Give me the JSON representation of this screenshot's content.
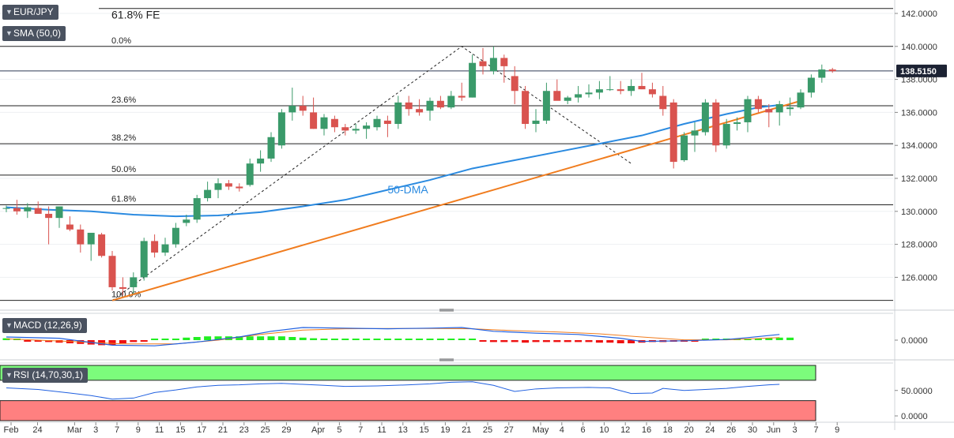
{
  "instrument": "EUR/JPY",
  "indicator_labels": {
    "sma": "SMA (50,0)",
    "macd": "MACD (12,26,9)",
    "rsi": "RSI (14,70,30,1)"
  },
  "colors": {
    "up_candle": "#3a9a6a",
    "down_candle": "#d9534f",
    "sma_line": "#2a8ae0",
    "trend_line": "#f07c1e",
    "macd_line": "#2060e0",
    "signal_line": "#f07c1e",
    "hist_up": "#22ee22",
    "hist_down": "#ee1111",
    "rsi_overbought": "#7cfc7c",
    "rsi_oversold": "#ff8080"
  },
  "chart_data": {
    "type": "candlestick",
    "price_axis": {
      "ticks": [
        {
          "v": 142,
          "label": "142.0000"
        },
        {
          "v": 140,
          "label": "140.0000"
        },
        {
          "v": 138,
          "label": "138.0000"
        },
        {
          "v": 136,
          "label": "136.0000"
        },
        {
          "v": 134,
          "label": "134.0000"
        },
        {
          "v": 132,
          "label": "132.0000"
        },
        {
          "v": 130,
          "label": "130.0000"
        },
        {
          "v": 128,
          "label": "128.0000"
        },
        {
          "v": 126,
          "label": "126.0000"
        }
      ],
      "current_price": 138.515,
      "current_label": "138.5150"
    },
    "x_axis": {
      "ticks": [
        {
          "i": 0,
          "label": "Feb"
        },
        {
          "i": 2.5,
          "label": "24"
        },
        {
          "i": 6,
          "label": "Mar"
        },
        {
          "i": 8,
          "label": "3"
        },
        {
          "i": 10,
          "label": "7"
        },
        {
          "i": 12,
          "label": "9"
        },
        {
          "i": 14,
          "label": "11"
        },
        {
          "i": 16,
          "label": "15"
        },
        {
          "i": 18,
          "label": "17"
        },
        {
          "i": 20,
          "label": "21"
        },
        {
          "i": 22,
          "label": "23"
        },
        {
          "i": 24,
          "label": "25"
        },
        {
          "i": 26,
          "label": "29"
        },
        {
          "i": 29,
          "label": "Apr"
        },
        {
          "i": 31,
          "label": "5"
        },
        {
          "i": 33,
          "label": "7"
        },
        {
          "i": 35,
          "label": "11"
        },
        {
          "i": 37,
          "label": "13"
        },
        {
          "i": 39,
          "label": "15"
        },
        {
          "i": 41,
          "label": "19"
        },
        {
          "i": 43,
          "label": "21"
        },
        {
          "i": 45,
          "label": "25"
        },
        {
          "i": 47,
          "label": "27"
        },
        {
          "i": 50,
          "label": "May"
        },
        {
          "i": 52,
          "label": "4"
        },
        {
          "i": 54,
          "label": "6"
        },
        {
          "i": 56,
          "label": "10"
        },
        {
          "i": 58,
          "label": "12"
        },
        {
          "i": 60,
          "label": "16"
        },
        {
          "i": 62,
          "label": "18"
        },
        {
          "i": 64,
          "label": "20"
        },
        {
          "i": 66,
          "label": "24"
        },
        {
          "i": 68,
          "label": "26"
        },
        {
          "i": 70,
          "label": "30"
        },
        {
          "i": 72,
          "label": "Jun"
        },
        {
          "i": 74,
          "label": "3"
        },
        {
          "i": 76,
          "label": "7"
        },
        {
          "i": 78,
          "label": "9"
        }
      ]
    },
    "candles": [
      [
        130.15,
        130.35,
        129.95,
        130.2
      ],
      [
        130.2,
        130.7,
        129.8,
        130.0
      ],
      [
        130.0,
        130.5,
        129.6,
        130.25
      ],
      [
        130.2,
        130.6,
        129.9,
        129.85
      ],
      [
        129.85,
        130.3,
        128.0,
        129.6
      ],
      [
        129.6,
        130.2,
        129.0,
        130.3
      ],
      [
        129.2,
        129.7,
        128.8,
        128.9
      ],
      [
        128.9,
        129.2,
        127.5,
        128.0
      ],
      [
        128.0,
        128.6,
        127.0,
        128.7
      ],
      [
        128.6,
        128.7,
        127.2,
        127.3
      ],
      [
        127.3,
        127.6,
        125.2,
        125.4
      ],
      [
        125.4,
        126.0,
        124.9,
        125.3
      ],
      [
        125.4,
        126.3,
        125.0,
        126.0
      ],
      [
        126.0,
        128.4,
        125.8,
        128.2
      ],
      [
        128.2,
        128.6,
        127.2,
        127.5
      ],
      [
        127.5,
        128.4,
        127.3,
        128.0
      ],
      [
        128.0,
        129.3,
        127.8,
        129.0
      ],
      [
        129.3,
        129.8,
        129.1,
        129.5
      ],
      [
        129.5,
        131.0,
        129.3,
        130.8
      ],
      [
        130.8,
        131.8,
        130.6,
        131.3
      ],
      [
        131.3,
        132.0,
        130.8,
        131.7
      ],
      [
        131.7,
        131.9,
        131.3,
        131.5
      ],
      [
        131.5,
        131.7,
        131.2,
        131.4
      ],
      [
        131.6,
        133.2,
        131.5,
        132.9
      ],
      [
        132.9,
        133.7,
        132.4,
        133.2
      ],
      [
        133.2,
        134.8,
        133.0,
        134.5
      ],
      [
        134.0,
        136.2,
        133.8,
        136.0
      ],
      [
        136.0,
        137.5,
        135.5,
        136.4
      ],
      [
        136.4,
        137.0,
        135.8,
        136.1
      ],
      [
        136.0,
        136.9,
        135.0,
        135.0
      ],
      [
        135.0,
        135.9,
        134.6,
        135.7
      ],
      [
        135.6,
        135.8,
        134.8,
        135.1
      ],
      [
        135.1,
        135.3,
        134.6,
        134.9
      ],
      [
        134.9,
        135.3,
        134.7,
        135.0
      ],
      [
        135.0,
        135.4,
        134.4,
        135.2
      ],
      [
        135.1,
        135.8,
        134.9,
        135.6
      ],
      [
        135.5,
        135.8,
        134.5,
        135.3
      ],
      [
        135.3,
        137.0,
        135.0,
        136.6
      ],
      [
        136.6,
        137.0,
        135.8,
        136.2
      ],
      [
        136.2,
        136.8,
        135.8,
        136.0
      ],
      [
        136.1,
        136.9,
        135.5,
        136.7
      ],
      [
        136.7,
        137.0,
        136.2,
        136.3
      ],
      [
        136.3,
        137.3,
        136.2,
        137.0
      ],
      [
        137.0,
        137.8,
        136.7,
        136.9
      ],
      [
        136.9,
        139.5,
        136.9,
        139.0
      ],
      [
        139.1,
        139.9,
        138.3,
        138.8
      ],
      [
        138.5,
        140.0,
        138.3,
        139.3
      ],
      [
        139.3,
        139.5,
        137.8,
        138.8
      ],
      [
        138.2,
        138.8,
        136.5,
        137.3
      ],
      [
        137.3,
        137.6,
        135.0,
        135.3
      ],
      [
        135.3,
        136.2,
        134.8,
        135.5
      ],
      [
        135.5,
        137.8,
        135.3,
        137.3
      ],
      [
        137.3,
        138.0,
        136.8,
        136.7
      ],
      [
        136.7,
        137.0,
        136.5,
        136.9
      ],
      [
        136.9,
        137.6,
        136.6,
        137.1
      ],
      [
        137.1,
        137.7,
        136.9,
        137.2
      ],
      [
        137.2,
        137.9,
        136.8,
        137.4
      ],
      [
        137.4,
        138.2,
        137.3,
        137.4
      ],
      [
        137.4,
        137.9,
        137.1,
        137.3
      ],
      [
        137.3,
        138.0,
        137.0,
        137.6
      ],
      [
        137.6,
        138.4,
        137.4,
        137.4
      ],
      [
        137.4,
        137.8,
        136.9,
        137.1
      ],
      [
        137.0,
        137.6,
        135.8,
        136.2
      ],
      [
        136.6,
        136.8,
        132.6,
        133.0
      ],
      [
        133.1,
        134.8,
        133.0,
        134.6
      ],
      [
        134.6,
        135.4,
        133.6,
        134.9
      ],
      [
        134.8,
        136.8,
        134.6,
        136.6
      ],
      [
        136.6,
        136.8,
        133.6,
        134.0
      ],
      [
        134.0,
        135.6,
        133.8,
        135.3
      ],
      [
        135.3,
        135.7,
        134.9,
        135.4
      ],
      [
        135.4,
        137.0,
        134.8,
        136.8
      ],
      [
        136.8,
        137.0,
        136.0,
        136.2
      ],
      [
        136.2,
        136.5,
        135.1,
        136.0
      ],
      [
        136.0,
        136.7,
        135.2,
        136.5
      ],
      [
        136.2,
        136.9,
        135.8,
        136.3
      ],
      [
        136.3,
        137.4,
        136.2,
        137.2
      ]
    ],
    "candles_tail": [
      [
        137.2,
        138.3,
        136.9,
        138.1
      ],
      [
        138.1,
        138.9,
        137.8,
        138.6
      ],
      [
        138.6,
        138.7,
        138.4,
        138.5
      ]
    ],
    "sma50": [
      [
        0,
        130.25
      ],
      [
        4,
        130.1
      ],
      [
        8,
        130.0
      ],
      [
        12,
        129.8
      ],
      [
        16,
        129.7
      ],
      [
        20,
        129.75
      ],
      [
        24,
        129.95
      ],
      [
        28,
        130.3
      ],
      [
        32,
        130.7
      ],
      [
        36,
        131.3
      ],
      [
        40,
        131.9
      ],
      [
        44,
        132.6
      ],
      [
        48,
        133.1
      ],
      [
        52,
        133.6
      ],
      [
        56,
        134.1
      ],
      [
        60,
        134.6
      ],
      [
        64,
        135.3
      ],
      [
        68,
        135.9
      ],
      [
        71,
        136.3
      ],
      [
        73,
        136.45
      ]
    ],
    "trend_line": [
      [
        10,
        124.6
      ],
      [
        75,
        136.7
      ]
    ],
    "fib_levels": [
      {
        "v": 142.3,
        "label": "61.8% FE"
      },
      {
        "v": 140.0,
        "label": "0.0%"
      },
      {
        "v": 136.4,
        "label": "23.6%"
      },
      {
        "v": 134.1,
        "label": "38.2%"
      },
      {
        "v": 132.2,
        "label": "50.0%"
      },
      {
        "v": 130.4,
        "label": "61.8%"
      },
      {
        "v": 124.6,
        "label": "100.0%"
      }
    ],
    "fib_dashed": [
      [
        10,
        124.6
      ],
      [
        43,
        140.0
      ],
      [
        59,
        132.9
      ]
    ],
    "annotations": [
      {
        "text": "50-DMA",
        "i": 36,
        "v": 131.1
      }
    ],
    "macd": {
      "axis_label": "0.0000",
      "macd_line": [
        [
          0,
          0.5
        ],
        [
          5,
          0.3
        ],
        [
          10,
          -0.8
        ],
        [
          14,
          -0.9
        ],
        [
          18,
          -0.3
        ],
        [
          22,
          0.5
        ],
        [
          25,
          1.4
        ],
        [
          28,
          2.0
        ],
        [
          32,
          1.9
        ],
        [
          36,
          1.8
        ],
        [
          40,
          1.9
        ],
        [
          43,
          2.0
        ],
        [
          46,
          1.4
        ],
        [
          50,
          1.1
        ],
        [
          54,
          0.9
        ],
        [
          58,
          0.3
        ],
        [
          60,
          -0.2
        ],
        [
          64,
          -0.1
        ],
        [
          68,
          0.1
        ],
        [
          70,
          0.4
        ],
        [
          73,
          0.9
        ]
      ],
      "signal_line": [
        [
          0,
          0.2
        ],
        [
          6,
          -0.2
        ],
        [
          11,
          -0.6
        ],
        [
          16,
          -0.6
        ],
        [
          20,
          0.0
        ],
        [
          24,
          0.9
        ],
        [
          28,
          1.6
        ],
        [
          32,
          1.8
        ],
        [
          36,
          1.85
        ],
        [
          41,
          1.85
        ],
        [
          44,
          1.8
        ],
        [
          48,
          1.5
        ],
        [
          52,
          1.3
        ],
        [
          56,
          1.0
        ],
        [
          60,
          0.5
        ],
        [
          64,
          0.05
        ],
        [
          68,
          0.05
        ],
        [
          73,
          0.4
        ]
      ],
      "histogram": [
        0.3,
        0.1,
        -0.1,
        -0.2,
        -0.3,
        -0.4,
        -0.5,
        -0.6,
        -0.7,
        -0.8,
        -0.8,
        -0.5,
        -0.3,
        -0.2,
        0.0,
        0.1,
        0.2,
        0.4,
        0.5,
        0.6,
        0.6,
        0.6,
        0.6,
        0.6,
        0.6,
        0.6,
        0.6,
        0.5,
        0.4,
        0.3,
        0.2,
        0.1,
        0.05,
        0.0,
        0.0,
        0.0,
        0.0,
        0.0,
        0.1,
        0.1,
        0.15,
        0.2,
        0.2,
        0.1,
        0.0,
        -0.2,
        -0.3,
        -0.3,
        -0.3,
        -0.4,
        -0.3,
        -0.3,
        -0.3,
        -0.3,
        -0.3,
        -0.3,
        -0.4,
        -0.4,
        -0.5,
        -0.5,
        -0.4,
        -0.3,
        -0.3,
        -0.2,
        -0.1,
        -0.05,
        0.0,
        0.0,
        0.0,
        0.05,
        0.15,
        0.25,
        0.35,
        0.4,
        0.4
      ]
    },
    "rsi": {
      "ticks": [
        {
          "v": 50,
          "label": "50.0000"
        },
        {
          "v": 0,
          "label": "0.0000"
        }
      ],
      "overbought": 70,
      "oversold": 30,
      "values": [
        [
          0,
          55
        ],
        [
          3,
          52
        ],
        [
          6,
          45
        ],
        [
          8,
          40
        ],
        [
          10,
          33
        ],
        [
          12,
          35
        ],
        [
          14,
          46
        ],
        [
          16,
          51
        ],
        [
          18,
          57
        ],
        [
          20,
          60
        ],
        [
          22,
          61
        ],
        [
          24,
          63
        ],
        [
          26,
          64
        ],
        [
          28,
          62
        ],
        [
          30,
          60
        ],
        [
          32,
          58
        ],
        [
          35,
          59
        ],
        [
          38,
          61
        ],
        [
          40,
          63
        ],
        [
          42,
          66
        ],
        [
          44,
          67
        ],
        [
          46,
          60
        ],
        [
          48,
          48
        ],
        [
          50,
          53
        ],
        [
          52,
          55
        ],
        [
          55,
          56
        ],
        [
          57,
          55
        ],
        [
          59,
          44
        ],
        [
          61,
          45
        ],
        [
          62,
          54
        ],
        [
          64,
          50
        ],
        [
          66,
          52
        ],
        [
          68,
          54
        ],
        [
          70,
          58
        ],
        [
          72,
          61
        ],
        [
          73,
          62
        ]
      ]
    }
  }
}
